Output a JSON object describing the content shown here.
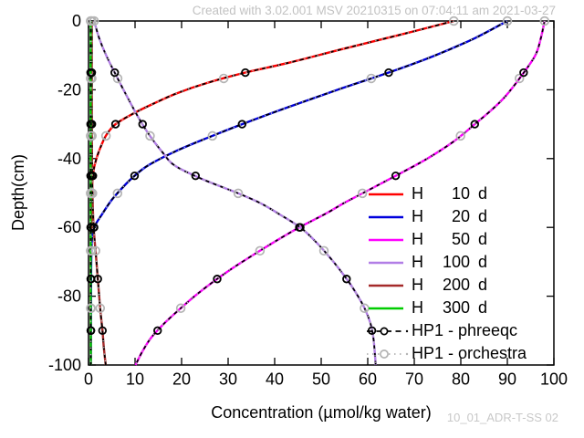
{
  "window": {
    "creation_stamp": "Created with 3.02.001 MSV 20210315 on 07:04:11 am 2021-03-27",
    "corner_watermark": "10_01_ADR-T-SS 02"
  },
  "chart_data": {
    "type": "line",
    "title": "Created with 3.02.001 MSV 20210315 on 07:04:11 am 2021-03-27",
    "xlabel": "Concentration (µmol/kg water)",
    "ylabel": "Depth(cm)",
    "watermark": "10_01_ADR-T-SS 02",
    "xlim": [
      0,
      100
    ],
    "ylim": [
      -100,
      0
    ],
    "xticks": [
      0,
      10,
      20,
      30,
      40,
      50,
      60,
      70,
      80,
      90,
      100
    ],
    "yticks": [
      0,
      -20,
      -40,
      -60,
      -80,
      -100
    ],
    "grid": false,
    "legend_position": "inside-right-middle",
    "frame_color": "#000000",
    "series": [
      {
        "name": "H 10 d",
        "legend": {
          "label": "H",
          "value": "10",
          "unit": "d"
        },
        "color": "#ff0000",
        "points": [
          [
            0,
            78.5
          ],
          [
            -4,
            67
          ],
          [
            -8,
            55
          ],
          [
            -12,
            43.5
          ],
          [
            -15,
            33.7
          ],
          [
            -18,
            25.5
          ],
          [
            -21,
            19
          ],
          [
            -24,
            14
          ],
          [
            -27,
            9.5
          ],
          [
            -30,
            5.8
          ],
          [
            -33,
            3.9
          ],
          [
            -36,
            2.8
          ],
          [
            -40,
            1.7
          ],
          [
            -44,
            1.0
          ],
          [
            -48,
            0.75
          ],
          [
            -55,
            0.6
          ],
          [
            -65,
            0.5
          ],
          [
            -80,
            0.5
          ],
          [
            -100,
            0.5
          ]
        ]
      },
      {
        "name": "H 20 d",
        "legend": {
          "label": "H",
          "value": "20",
          "unit": "d"
        },
        "color": "#0000dd",
        "points": [
          [
            0,
            90
          ],
          [
            -5,
            83
          ],
          [
            -10,
            74.5
          ],
          [
            -15,
            64.5
          ],
          [
            -20,
            53.5
          ],
          [
            -25,
            43
          ],
          [
            -30,
            33
          ],
          [
            -34,
            25.5
          ],
          [
            -38,
            18.5
          ],
          [
            -42,
            12.8
          ],
          [
            -45,
            9.9
          ],
          [
            -48,
            7.6
          ],
          [
            -52,
            5.0
          ],
          [
            -56,
            3.0
          ],
          [
            -60,
            1.2
          ],
          [
            -64,
            0.7
          ],
          [
            -75,
            0.55
          ],
          [
            -100,
            0.5
          ]
        ]
      },
      {
        "name": "H 50 d",
        "legend": {
          "label": "H",
          "value": "50",
          "unit": "d"
        },
        "color": "#ff00ff",
        "points": [
          [
            0,
            98
          ],
          [
            -5,
            97.2
          ],
          [
            -10,
            96
          ],
          [
            -16,
            93
          ],
          [
            -22,
            89.5
          ],
          [
            -26,
            86.5
          ],
          [
            -30,
            83
          ],
          [
            -35,
            78.5
          ],
          [
            -40,
            72.8
          ],
          [
            -45,
            66
          ],
          [
            -50,
            59
          ],
          [
            -53,
            54.8
          ],
          [
            -56,
            51
          ],
          [
            -60,
            45.3
          ],
          [
            -64,
            40.2
          ],
          [
            -68,
            35.4
          ],
          [
            -72,
            30.8
          ],
          [
            -76,
            26.6
          ],
          [
            -80,
            22.8
          ],
          [
            -84,
            19.4
          ],
          [
            -88,
            16.2
          ],
          [
            -92,
            13.5
          ],
          [
            -96,
            11.6
          ],
          [
            -100,
            10.1
          ]
        ]
      },
      {
        "name": "H 100 d",
        "legend": {
          "label": "H",
          "value": "100",
          "unit": "d"
        },
        "color": "#b27ee6",
        "points": [
          [
            0,
            1.2
          ],
          [
            -5,
            2.3
          ],
          [
            -10,
            3.8
          ],
          [
            -16,
            6
          ],
          [
            -22,
            8.3
          ],
          [
            -28,
            10.7
          ],
          [
            -33,
            13
          ],
          [
            -38,
            15.8
          ],
          [
            -42,
            18.5
          ],
          [
            -46,
            24.5
          ],
          [
            -50,
            32
          ],
          [
            -53,
            37
          ],
          [
            -56,
            40.8
          ],
          [
            -60,
            45.5
          ],
          [
            -64,
            48.7
          ],
          [
            -68,
            51.4
          ],
          [
            -72,
            53.8
          ],
          [
            -76,
            56
          ],
          [
            -80,
            57.9
          ],
          [
            -84,
            59.5
          ],
          [
            -88,
            60.6
          ],
          [
            -92,
            61.2
          ],
          [
            -96,
            61.5
          ],
          [
            -100,
            61.7
          ]
        ]
      },
      {
        "name": "H 200 d",
        "legend": {
          "label": "H",
          "value": "200",
          "unit": "d"
        },
        "color": "#a52a2a",
        "points": [
          [
            0,
            0.7
          ],
          [
            -20,
            0.7
          ],
          [
            -40,
            0.75
          ],
          [
            -50,
            0.85
          ],
          [
            -55,
            0.95
          ],
          [
            -60,
            1.1
          ],
          [
            -65,
            1.4
          ],
          [
            -70,
            1.7
          ],
          [
            -75,
            2.0
          ],
          [
            -80,
            2.3
          ],
          [
            -85,
            2.6
          ],
          [
            -90,
            3.0
          ],
          [
            -95,
            3.3
          ],
          [
            -100,
            3.7
          ]
        ]
      },
      {
        "name": "H 300 d",
        "legend": {
          "label": "H",
          "value": "300",
          "unit": "d"
        },
        "color": "#00cc00",
        "points": [
          [
            0,
            0.45
          ],
          [
            -25,
            0.45
          ],
          [
            -50,
            0.45
          ],
          [
            -75,
            0.48
          ],
          [
            -100,
            0.5
          ]
        ]
      }
    ],
    "overlays": [
      {
        "name": "HP1 - phreeqc",
        "style": "dashed",
        "color": "#000000",
        "marker": "open-circle",
        "marker_depths": [
          -15,
          -30,
          -45,
          -60,
          -75,
          -90
        ]
      },
      {
        "name": "HP1 - orchestra",
        "style": "dotted",
        "color": "#b4b4b4",
        "marker": "open-circle",
        "marker_depths": [
          0,
          -16.7,
          -33.4,
          -50.1,
          -66.8,
          -83.5
        ]
      }
    ]
  }
}
